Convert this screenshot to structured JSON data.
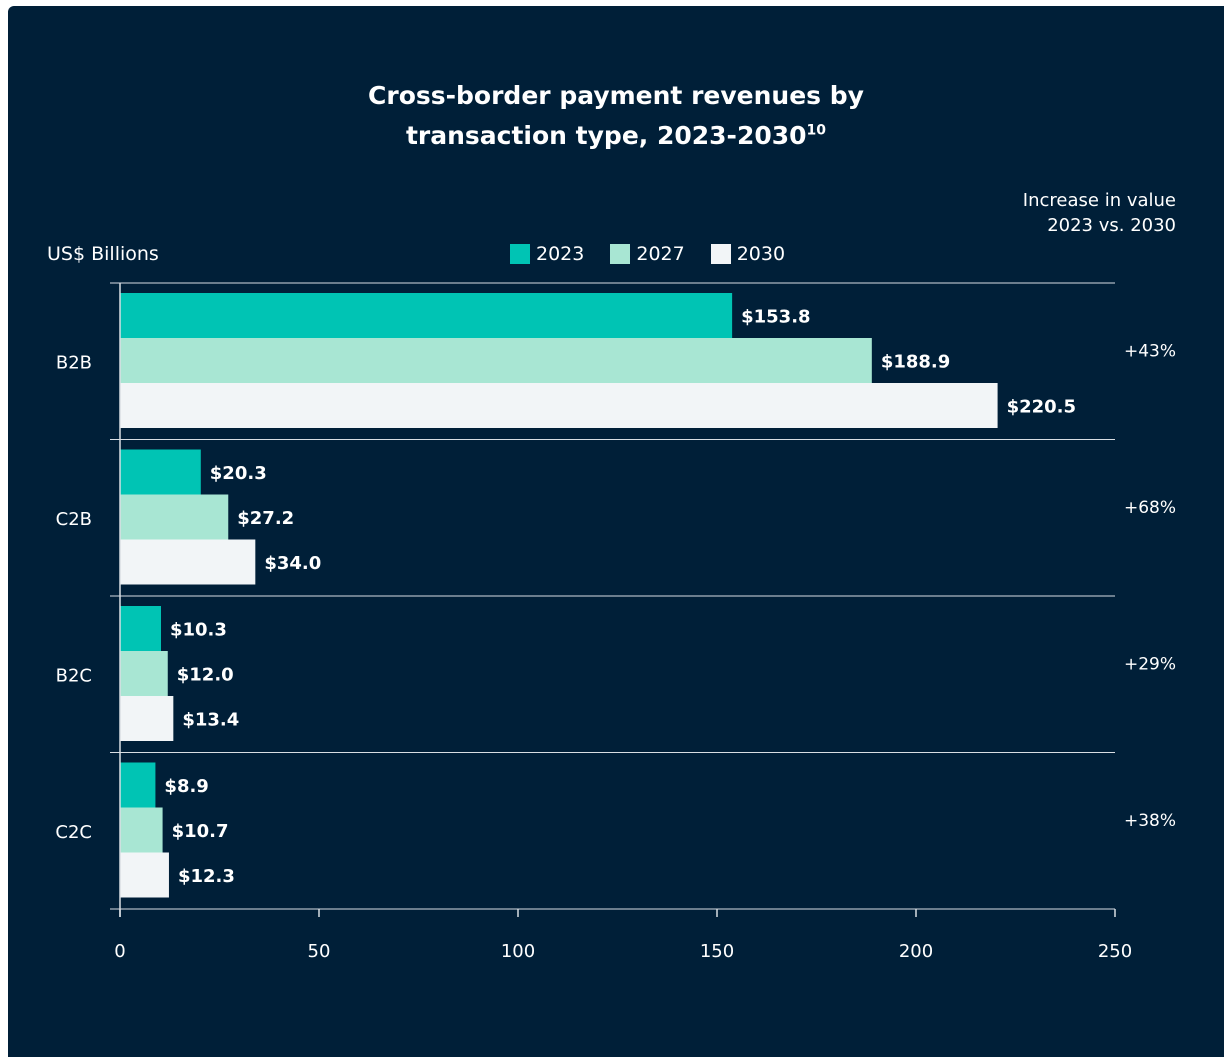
{
  "chart_data": {
    "type": "bar",
    "orientation": "horizontal",
    "title_line1": "Cross-border payment revenues by",
    "title_line2": "transaction type, 2023-2030",
    "title_footnote": "10",
    "units_label": "US$ Billions",
    "increase_header_line1": "Increase in value",
    "increase_header_line2": "2023 vs. 2030",
    "categories": [
      "B2B",
      "C2B",
      "B2C",
      "C2C"
    ],
    "series": [
      {
        "name": "2023",
        "color": "#00c4b4",
        "values": [
          153.8,
          20.3,
          10.3,
          8.9
        ],
        "labels": [
          "$153.8",
          "$20.3",
          "$10.3",
          "$8.9"
        ]
      },
      {
        "name": "2027",
        "color": "#a8e6d3",
        "values": [
          188.9,
          27.2,
          12.0,
          10.7
        ],
        "labels": [
          "$188.9",
          "$27.2",
          "$12.0",
          "$10.7"
        ]
      },
      {
        "name": "2030",
        "color": "#f2f5f7",
        "values": [
          220.5,
          34.0,
          13.4,
          12.3
        ],
        "labels": [
          "$220.5",
          "$34.0",
          "$13.4",
          "$12.3"
        ]
      }
    ],
    "increase": [
      "+43%",
      "+68%",
      "+29%",
      "+38%"
    ],
    "xlim": [
      0,
      250
    ],
    "xticks": [
      0,
      50,
      100,
      150,
      200,
      250
    ],
    "legend_position": "top-center",
    "background_color": "#001f38",
    "text_color": "#ffffff"
  }
}
